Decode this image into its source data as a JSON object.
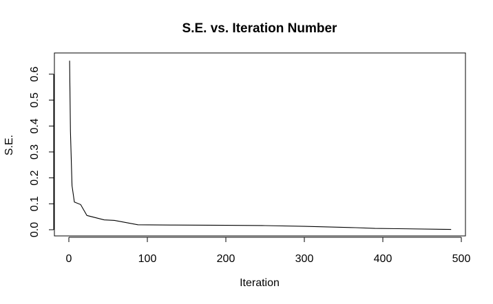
{
  "chart_data": {
    "type": "line",
    "title": "S.E. vs. Iteration Number",
    "xlabel": "Iteration",
    "ylabel": "S.E.",
    "xlim": [
      0,
      500
    ],
    "ylim": [
      0,
      0.65
    ],
    "x_ticks": [
      0,
      100,
      200,
      300,
      400,
      500
    ],
    "x_tick_labels": [
      "0",
      "100",
      "200",
      "300",
      "400",
      "500"
    ],
    "y_ticks": [
      0,
      0.1,
      0.2,
      0.3,
      0.4,
      0.5,
      0.6
    ],
    "y_tick_labels": [
      "0.0",
      "0.1",
      "0.2",
      "0.3",
      "0.4",
      "0.5",
      "0.6"
    ],
    "grid": false,
    "series": [
      {
        "x": [
          1,
          2,
          4,
          7,
          15,
          23,
          45,
          58,
          88,
          130,
          200,
          250,
          300,
          365,
          390,
          420,
          487
        ],
        "y": [
          0.652,
          0.38,
          0.17,
          0.107,
          0.097,
          0.055,
          0.038,
          0.036,
          0.019,
          0.018,
          0.017,
          0.016,
          0.013,
          0.008,
          0.005,
          0.004,
          0.001
        ]
      }
    ]
  }
}
